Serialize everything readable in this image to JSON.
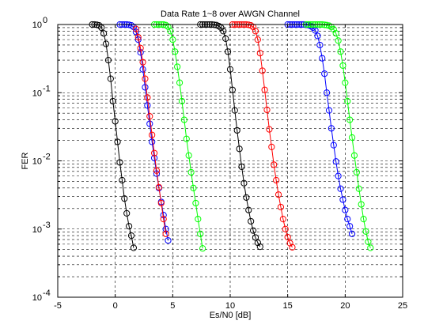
{
  "chart_data": {
    "type": "line",
    "title": "Data Rate 1~8 over AWGN Channel",
    "xlabel": "Es/N0 [dB]",
    "ylabel": "FER",
    "xlim": [
      -5,
      25
    ],
    "ylim": [
      0.0001,
      1
    ],
    "y_scale": "log",
    "grid": true,
    "x_ticks": [
      -5,
      0,
      5,
      10,
      15,
      20,
      25
    ],
    "x_tick_labels": [
      "-5",
      "0",
      "5",
      "10",
      "15",
      "20",
      "25"
    ],
    "y_ticks": [
      0.0001,
      0.001,
      0.01,
      0.1,
      1
    ],
    "y_tick_labels": [
      {
        "base": "10",
        "exp": "-4"
      },
      {
        "base": "10",
        "exp": "-3"
      },
      {
        "base": "10",
        "exp": "-2"
      },
      {
        "base": "10",
        "exp": "-1"
      },
      {
        "base": "10",
        "exp": "0"
      }
    ],
    "marker": "circle",
    "series": [
      {
        "color": "#000000",
        "x": [
          -2.0,
          -1.8,
          -1.6,
          -1.4,
          -1.2,
          -1.0,
          -0.8,
          -0.6,
          -0.4,
          -0.2,
          0.0,
          0.2,
          0.4,
          0.6,
          0.8,
          1.0,
          1.2,
          1.4,
          1.6
        ],
        "y": [
          1.0,
          1.0,
          0.99,
          0.97,
          0.9,
          0.74,
          0.52,
          0.3,
          0.16,
          0.075,
          0.038,
          0.019,
          0.0095,
          0.0052,
          0.0028,
          0.0017,
          0.0011,
          0.0008,
          0.00053
        ]
      },
      {
        "color": "#0000ff",
        "x": [
          0.4,
          0.6,
          0.8,
          1.0,
          1.2,
          1.4,
          1.6,
          1.8,
          2.0,
          2.2,
          2.4,
          2.6,
          2.8,
          3.0,
          3.2,
          3.4,
          3.6,
          3.8,
          4.0,
          4.2,
          4.4,
          4.6
        ],
        "y": [
          1.0,
          1.0,
          1.0,
          1.0,
          0.99,
          0.97,
          0.92,
          0.78,
          0.6,
          0.39,
          0.22,
          0.12,
          0.065,
          0.035,
          0.019,
          0.011,
          0.0065,
          0.004,
          0.0025,
          0.0016,
          0.001,
          0.00068
        ]
      },
      {
        "color": "#ff0000",
        "x": [
          1.8,
          2.0,
          2.2,
          2.4,
          2.6,
          2.8,
          3.0,
          3.2,
          3.4,
          3.6,
          3.8,
          4.0,
          4.2,
          4.4
        ],
        "y": [
          0.86,
          0.65,
          0.45,
          0.28,
          0.16,
          0.085,
          0.045,
          0.024,
          0.013,
          0.0072,
          0.0041,
          0.0024,
          0.0014,
          0.00085
        ]
      },
      {
        "color": "#00ff00",
        "x": [
          3.4,
          3.6,
          3.8,
          4.0,
          4.2,
          4.4,
          4.6,
          4.8,
          5.0,
          5.2,
          5.4,
          5.6,
          5.8,
          6.0,
          6.2,
          6.4,
          6.6,
          6.8,
          7.0,
          7.2,
          7.4,
          7.6
        ],
        "y": [
          1.0,
          1.0,
          1.0,
          1.0,
          1.0,
          0.98,
          0.93,
          0.8,
          0.6,
          0.4,
          0.24,
          0.14,
          0.075,
          0.04,
          0.021,
          0.012,
          0.0068,
          0.004,
          0.0024,
          0.0014,
          0.00085,
          0.00052
        ]
      },
      {
        "color": "#000000",
        "x": [
          7.4,
          7.6,
          7.8,
          8.0,
          8.2,
          8.4,
          8.6,
          8.8,
          9.0,
          9.2,
          9.4,
          9.6,
          9.8,
          10.0,
          10.2,
          10.4,
          10.6,
          10.8,
          11.0,
          11.2,
          11.4,
          11.6,
          11.8,
          12.0,
          12.2,
          12.4,
          12.6
        ],
        "y": [
          1.0,
          1.0,
          1.0,
          1.0,
          1.0,
          1.0,
          0.99,
          0.98,
          0.95,
          0.9,
          0.8,
          0.62,
          0.4,
          0.22,
          0.11,
          0.055,
          0.028,
          0.015,
          0.0082,
          0.0047,
          0.0029,
          0.0019,
          0.0013,
          0.00095,
          0.00075,
          0.00063,
          0.00055
        ]
      },
      {
        "color": "#ff0000",
        "x": [
          10.2,
          10.4,
          10.6,
          10.8,
          11.0,
          11.2,
          11.4,
          11.6,
          11.8,
          12.0,
          12.2,
          12.4,
          12.6,
          12.8,
          13.0,
          13.2,
          13.4,
          13.6,
          13.8,
          14.0,
          14.2,
          14.4,
          14.6,
          14.8,
          15.0,
          15.2,
          15.4
        ],
        "y": [
          1.0,
          1.0,
          1.0,
          1.0,
          1.0,
          1.0,
          1.0,
          0.99,
          0.97,
          0.92,
          0.8,
          0.6,
          0.38,
          0.21,
          0.11,
          0.056,
          0.029,
          0.016,
          0.0088,
          0.0052,
          0.0032,
          0.0021,
          0.0014,
          0.001,
          0.00076,
          0.00062,
          0.00054
        ]
      },
      {
        "color": "#0000ff",
        "x": [
          15.0,
          15.2,
          15.4,
          15.6,
          15.8,
          16.0,
          16.2,
          16.4,
          16.6,
          16.8,
          17.0,
          17.2,
          17.4,
          17.6,
          17.8,
          18.0,
          18.2,
          18.4,
          18.6,
          18.8,
          19.0,
          19.2,
          19.4,
          19.6,
          19.8,
          20.0,
          20.2,
          20.4,
          20.6
        ],
        "y": [
          1.0,
          1.0,
          1.0,
          1.0,
          1.0,
          1.0,
          1.0,
          1.0,
          0.99,
          0.98,
          0.95,
          0.9,
          0.82,
          0.68,
          0.5,
          0.32,
          0.19,
          0.1,
          0.055,
          0.03,
          0.017,
          0.0098,
          0.006,
          0.0039,
          0.0027,
          0.0019,
          0.0014,
          0.0011,
          0.00085
        ]
      },
      {
        "color": "#00ff00",
        "x": [
          16.6,
          16.8,
          17.0,
          17.2,
          17.4,
          17.6,
          17.8,
          18.0,
          18.2,
          18.4,
          18.6,
          18.8,
          19.0,
          19.2,
          19.4,
          19.6,
          19.8,
          20.0,
          20.2,
          20.4,
          20.6,
          20.8,
          21.0,
          21.2,
          21.4,
          21.6,
          21.8,
          22.0,
          22.2
        ],
        "y": [
          1.0,
          1.0,
          1.0,
          1.0,
          1.0,
          1.0,
          1.0,
          1.0,
          0.99,
          0.98,
          0.96,
          0.92,
          0.85,
          0.74,
          0.58,
          0.4,
          0.25,
          0.14,
          0.075,
          0.04,
          0.022,
          0.012,
          0.0068,
          0.0039,
          0.0023,
          0.0014,
          0.00092,
          0.00065,
          0.00053
        ]
      }
    ]
  }
}
